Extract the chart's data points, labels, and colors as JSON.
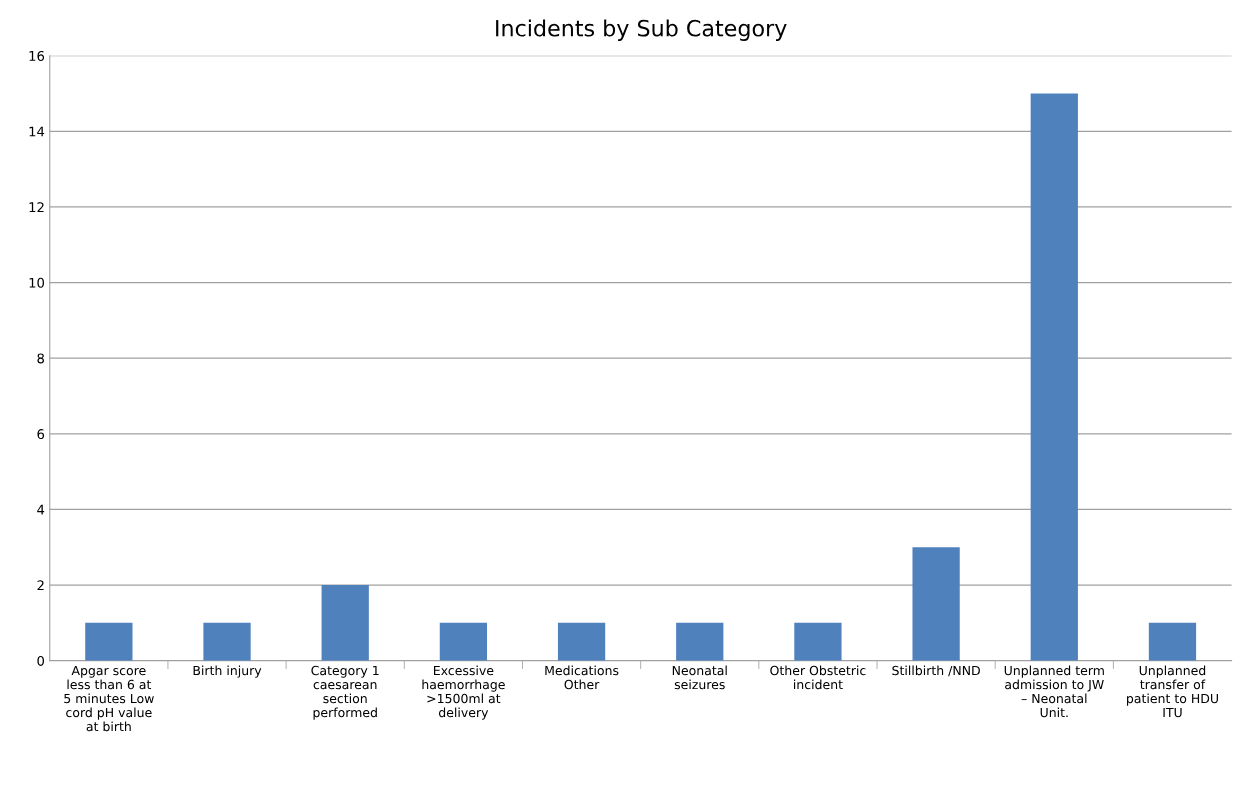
{
  "chart_data": {
    "type": "bar",
    "title": "Incidents by Sub Category",
    "categories": [
      "Apgar score less than 6 at 5 minutes Low cord pH value at birth",
      "Birth injury",
      "Category 1 caesarean section performed",
      "Excessive haemorrhage >1500ml at delivery",
      "Medications Other",
      "Neonatal seizures",
      "Other Obstetric incident",
      "Stillbirth /NND",
      "Unplanned term admission to JW – Neonatal Unit.",
      "Unplanned transfer of patient to HDU ITU"
    ],
    "values": [
      1,
      1,
      2,
      1,
      1,
      1,
      1,
      3,
      15,
      1
    ],
    "color": "#4f81bd",
    "ylim": [
      0,
      16
    ],
    "yticks": [
      0,
      2,
      4,
      6,
      8,
      10,
      12,
      14,
      16
    ],
    "grid": "y"
  }
}
